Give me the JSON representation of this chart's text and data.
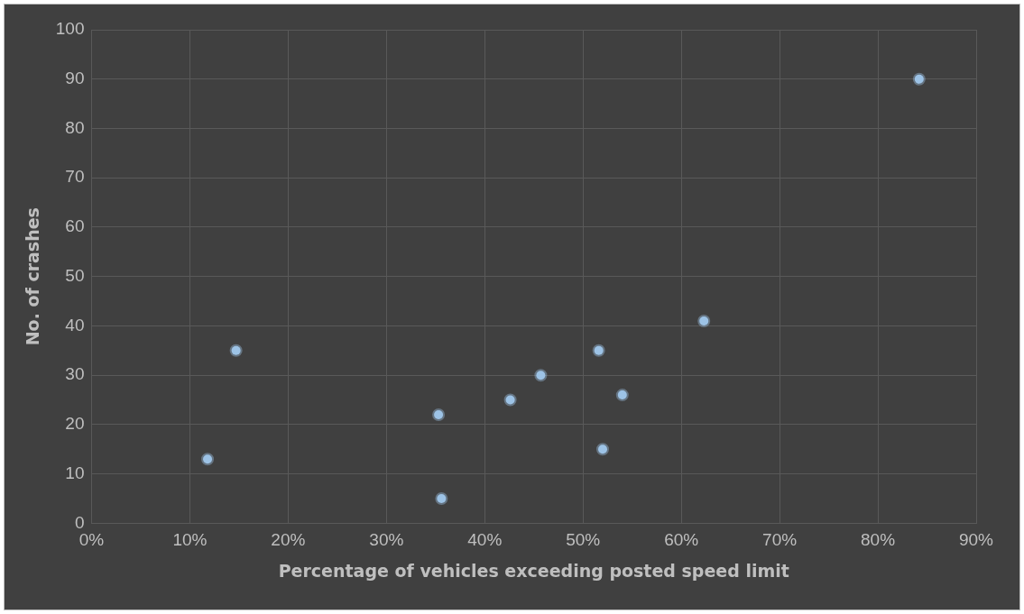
{
  "chart_data": {
    "type": "scatter",
    "xlabel": "Percentage of vehicles exceeding posted speed limit",
    "ylabel": "No. of crashes",
    "series": [
      {
        "color": "#9dc3e6",
        "x": [
          11.8,
          14.7,
          35.3,
          35.6,
          42.6,
          45.7,
          51.6,
          52.0,
          54.0,
          62.3,
          84.2
        ],
        "values": [
          13,
          35,
          22,
          5,
          25,
          30,
          35,
          15,
          26,
          41,
          90
        ]
      }
    ],
    "xlim": [
      0,
      90
    ],
    "xticks": [
      {
        "value": 0,
        "label": "0%"
      },
      {
        "value": 10,
        "label": "10%"
      },
      {
        "value": 20,
        "label": "20%"
      },
      {
        "value": 30,
        "label": "30%"
      },
      {
        "value": 40,
        "label": "40%"
      },
      {
        "value": 50,
        "label": "50%"
      },
      {
        "value": 60,
        "label": "60%"
      },
      {
        "value": 70,
        "label": "70%"
      },
      {
        "value": 80,
        "label": "80%"
      },
      {
        "value": 90,
        "label": "90%"
      }
    ],
    "ylim": [
      0,
      100
    ],
    "yticks": [
      0,
      10,
      20,
      30,
      40,
      50,
      60,
      70,
      80,
      90,
      100
    ],
    "grid": true,
    "marker": "circle"
  }
}
